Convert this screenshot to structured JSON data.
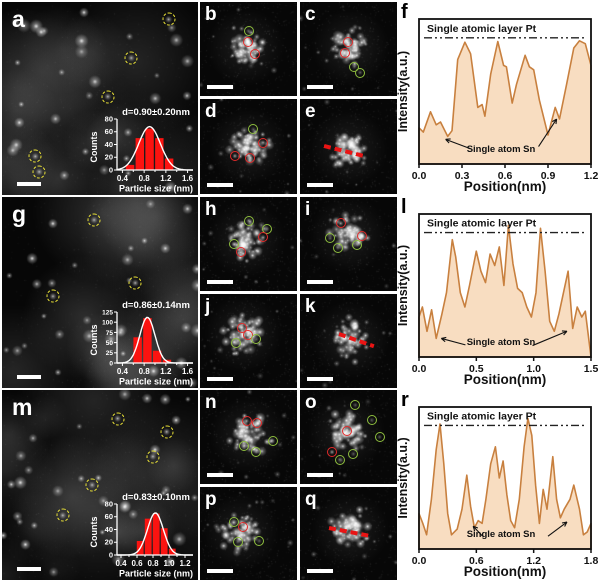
{
  "profile_labels": {
    "top_annotation": "Single atomic layer Pt",
    "bottom_annotation": "Single atom Sn",
    "xlabel": "Position(nm)",
    "ylabel": "Intensity(a.u.)"
  },
  "hist_labels": {
    "xlabel": "Particle size (nm)",
    "ylabel": "Counts"
  },
  "colors": {
    "profile_line": "#c8803f",
    "profile_fill": "#f8ddc1",
    "bar_red": "#fb1310",
    "gauss_curve": "#ffffff",
    "marker_red": "#e32a2a",
    "marker_green": "#8fbf3f",
    "marker_yellow": "#f0e838",
    "dashed_line_red": "#ea1414",
    "annotation": "#111111"
  },
  "micrographs": [
    {
      "id": "a",
      "label": "a",
      "kind": "support",
      "scale_bar": true,
      "hist": "a",
      "markers": [
        {
          "type": "yellow",
          "x": 85,
          "y": 9
        },
        {
          "type": "yellow",
          "x": 66,
          "y": 29
        },
        {
          "type": "yellow",
          "x": 54,
          "y": 49
        },
        {
          "type": "yellow",
          "x": 17,
          "y": 80
        },
        {
          "type": "yellow",
          "x": 19,
          "y": 88
        }
      ]
    },
    {
      "id": "b",
      "label": "b",
      "kind": "cluster",
      "scale_bar": true,
      "cluster": [
        47,
        48
      ],
      "markers": [
        {
          "type": "green",
          "x": 50,
          "y": 31
        },
        {
          "type": "red",
          "x": 49,
          "y": 43
        },
        {
          "type": "red",
          "x": 57,
          "y": 55
        }
      ]
    },
    {
      "id": "c",
      "label": "c",
      "kind": "cluster",
      "scale_bar": true,
      "cluster": [
        52,
        48
      ],
      "markers": [
        {
          "type": "red",
          "x": 49,
          "y": 43
        },
        {
          "type": "red",
          "x": 46,
          "y": 54
        },
        {
          "type": "green",
          "x": 56,
          "y": 69
        },
        {
          "type": "green",
          "x": 62,
          "y": 75
        }
      ]
    },
    {
      "id": "d",
      "label": "d",
      "kind": "cluster",
      "scale_bar": true,
      "cluster": [
        50,
        50
      ],
      "markers": [
        {
          "type": "green",
          "x": 55,
          "y": 32
        },
        {
          "type": "red",
          "x": 65,
          "y": 46
        },
        {
          "type": "red",
          "x": 36,
          "y": 60
        },
        {
          "type": "red",
          "x": 52,
          "y": 62
        }
      ]
    },
    {
      "id": "e",
      "label": "e",
      "kind": "cluster",
      "scale_bar": true,
      "cluster": [
        50,
        52
      ],
      "line": {
        "x1": 25,
        "y1": 47,
        "x2": 68,
        "y2": 58
      }
    },
    {
      "id": "g",
      "label": "g",
      "kind": "support",
      "scale_bar": true,
      "hist": "g",
      "markers": [
        {
          "type": "yellow",
          "x": 47,
          "y": 12
        },
        {
          "type": "yellow",
          "x": 68,
          "y": 45
        },
        {
          "type": "yellow",
          "x": 26,
          "y": 52
        }
      ]
    },
    {
      "id": "h",
      "label": "h",
      "kind": "cluster",
      "scale_bar": true,
      "cluster": [
        48,
        45
      ],
      "markers": [
        {
          "type": "green",
          "x": 50,
          "y": 25
        },
        {
          "type": "green",
          "x": 69,
          "y": 34
        },
        {
          "type": "red",
          "x": 65,
          "y": 43
        },
        {
          "type": "green",
          "x": 35,
          "y": 50
        },
        {
          "type": "red",
          "x": 42,
          "y": 59
        }
      ]
    },
    {
      "id": "i",
      "label": "i",
      "kind": "cluster",
      "scale_bar": true,
      "cluster": [
        50,
        40
      ],
      "markers": [
        {
          "type": "red",
          "x": 42,
          "y": 28
        },
        {
          "type": "red",
          "x": 64,
          "y": 41
        },
        {
          "type": "green",
          "x": 31,
          "y": 44
        },
        {
          "type": "green",
          "x": 39,
          "y": 54
        },
        {
          "type": "green",
          "x": 59,
          "y": 51
        }
      ]
    },
    {
      "id": "j",
      "label": "j",
      "kind": "cluster",
      "scale_bar": true,
      "cluster": [
        45,
        42
      ],
      "markers": [
        {
          "type": "red",
          "x": 43,
          "y": 36
        },
        {
          "type": "red",
          "x": 49,
          "y": 44
        },
        {
          "type": "green",
          "x": 58,
          "y": 48
        },
        {
          "type": "green",
          "x": 37,
          "y": 52
        }
      ]
    },
    {
      "id": "k",
      "label": "k",
      "kind": "cluster",
      "scale_bar": true,
      "cluster": [
        52,
        48
      ],
      "line": {
        "x1": 40,
        "y1": 40,
        "x2": 76,
        "y2": 53
      }
    },
    {
      "id": "m",
      "label": "m",
      "kind": "support",
      "scale_bar": true,
      "hist": "m",
      "markers": [
        {
          "type": "yellow",
          "x": 59,
          "y": 15
        },
        {
          "type": "yellow",
          "x": 84,
          "y": 22
        },
        {
          "type": "yellow",
          "x": 77,
          "y": 35
        },
        {
          "type": "yellow",
          "x": 46,
          "y": 50
        },
        {
          "type": "yellow",
          "x": 31,
          "y": 66
        }
      ]
    },
    {
      "id": "n",
      "label": "n",
      "kind": "cluster",
      "scale_bar": true,
      "cluster": [
        50,
        48
      ],
      "markers": [
        {
          "type": "red",
          "x": 48,
          "y": 33
        },
        {
          "type": "red",
          "x": 59,
          "y": 35
        },
        {
          "type": "green",
          "x": 75,
          "y": 54
        },
        {
          "type": "green",
          "x": 45,
          "y": 60
        },
        {
          "type": "green",
          "x": 58,
          "y": 66
        }
      ]
    },
    {
      "id": "o",
      "label": "o",
      "kind": "cluster",
      "scale_bar": true,
      "cluster": [
        48,
        45
      ],
      "markers": [
        {
          "type": "green",
          "x": 57,
          "y": 16
        },
        {
          "type": "green",
          "x": 74,
          "y": 32
        },
        {
          "type": "red",
          "x": 48,
          "y": 44
        },
        {
          "type": "green",
          "x": 82,
          "y": 50
        },
        {
          "type": "red",
          "x": 33,
          "y": 66
        },
        {
          "type": "green",
          "x": 55,
          "y": 68
        },
        {
          "type": "green",
          "x": 41,
          "y": 74
        }
      ]
    },
    {
      "id": "p",
      "label": "p",
      "kind": "cluster",
      "scale_bar": true,
      "cluster": [
        42,
        48
      ],
      "markers": [
        {
          "type": "green",
          "x": 35,
          "y": 38
        },
        {
          "type": "red",
          "x": 44,
          "y": 43
        },
        {
          "type": "green",
          "x": 39,
          "y": 59
        },
        {
          "type": "green",
          "x": 61,
          "y": 58
        }
      ]
    },
    {
      "id": "q",
      "label": "q",
      "kind": "cluster",
      "scale_bar": true,
      "cluster": [
        52,
        46
      ],
      "line": {
        "x1": 30,
        "y1": 42,
        "x2": 70,
        "y2": 50
      }
    }
  ],
  "chart_data": [
    {
      "id": "hist-a",
      "panel": "a",
      "type": "bar",
      "title": "d=0.90±0.20nm",
      "xlabel": "Particle size (nm)",
      "ylabel": "Counts",
      "xlim": [
        0.3,
        1.7
      ],
      "ylim": [
        0,
        80
      ],
      "xticks": [
        0.4,
        0.8,
        1.2,
        1.6
      ],
      "yticks": [
        0,
        20,
        40,
        60,
        80
      ],
      "bar_centers": [
        0.54,
        0.72,
        0.9,
        1.08,
        1.26
      ],
      "bar_heights": [
        8,
        50,
        65,
        50,
        18
      ],
      "bar_width": 0.17,
      "gauss": {
        "mean": 0.9,
        "sd": 0.2,
        "amp": 68
      }
    },
    {
      "id": "hist-g",
      "panel": "g",
      "type": "bar",
      "title": "d=0.86±0.14nm",
      "xlabel": "Particle size (nm)",
      "ylabel": "Counts",
      "xlim": [
        0.3,
        1.7
      ],
      "ylim": [
        0,
        125
      ],
      "xticks": [
        0.4,
        0.8,
        1.2,
        1.6
      ],
      "yticks": [
        0,
        25,
        50,
        75,
        100,
        125
      ],
      "bar_centers": [
        0.68,
        0.86,
        1.04,
        1.22
      ],
      "bar_heights": [
        63,
        110,
        30,
        8
      ],
      "bar_width": 0.17,
      "gauss": {
        "mean": 0.86,
        "sd": 0.14,
        "amp": 112
      }
    },
    {
      "id": "hist-m",
      "panel": "m",
      "type": "bar",
      "title": "d=0.83±0.10nm",
      "xlabel": "Particle size (nm)",
      "ylabel": "Counts",
      "xlim": [
        0.35,
        1.3
      ],
      "ylim": [
        0,
        80
      ],
      "xticks": [
        0.4,
        0.6,
        0.8,
        1.0,
        1.2
      ],
      "yticks": [
        0,
        20,
        40,
        60,
        80
      ],
      "bar_centers": [
        0.64,
        0.74,
        0.84,
        0.94,
        1.04
      ],
      "bar_heights": [
        22,
        57,
        65,
        42,
        10
      ],
      "bar_width": 0.095,
      "gauss": {
        "mean": 0.83,
        "sd": 0.1,
        "amp": 66
      }
    },
    {
      "id": "profile-f",
      "panel": "f",
      "type": "line",
      "title": "",
      "xlabel": "Position(nm)",
      "ylabel": "Intensity(a.u.)",
      "xlim": [
        0,
        1.2
      ],
      "xticks": [
        0.0,
        0.3,
        0.6,
        0.9,
        1.2
      ],
      "dashline_frac": 0.87,
      "annotation_top": "Single atomic layer Pt",
      "annotation_bottom": "Single atom Sn",
      "arrows": [
        {
          "from": [
            0.3,
            0.105
          ],
          "to": [
            0.155,
            0.17
          ]
        },
        {
          "from": [
            0.695,
            0.12
          ],
          "to": [
            0.8,
            0.31
          ]
        }
      ],
      "points": [
        [
          0,
          0.25
        ],
        [
          0.03,
          0.22
        ],
        [
          0.08,
          0.36
        ],
        [
          0.12,
          0.27
        ],
        [
          0.15,
          0.29
        ],
        [
          0.2,
          0.19
        ],
        [
          0.23,
          0.23
        ],
        [
          0.27,
          0.72
        ],
        [
          0.32,
          0.84
        ],
        [
          0.36,
          0.76
        ],
        [
          0.41,
          0.39
        ],
        [
          0.44,
          0.41
        ],
        [
          0.46,
          0.33
        ],
        [
          0.5,
          0.62
        ],
        [
          0.55,
          0.845
        ],
        [
          0.59,
          0.68
        ],
        [
          0.61,
          0.67
        ],
        [
          0.65,
          0.42
        ],
        [
          0.68,
          0.55
        ],
        [
          0.74,
          0.75
        ],
        [
          0.77,
          0.67
        ],
        [
          0.8,
          0.65
        ],
        [
          0.84,
          0.44
        ],
        [
          0.9,
          0.2
        ],
        [
          0.95,
          0.39
        ],
        [
          0.98,
          0.31
        ],
        [
          1.03,
          0.55
        ],
        [
          1.08,
          0.8
        ],
        [
          1.12,
          0.85
        ],
        [
          1.16,
          0.83
        ],
        [
          1.2,
          0.68
        ]
      ]
    },
    {
      "id": "profile-l",
      "panel": "l",
      "type": "line",
      "title": "",
      "xlabel": "Position(nm)",
      "ylabel": "Intensity(a.u.)",
      "xlim": [
        0,
        1.5
      ],
      "xticks": [
        0.0,
        0.5,
        1.0,
        1.5
      ],
      "dashline_frac": 0.87,
      "annotation_top": "Single atomic layer Pt",
      "annotation_bottom": "Single atom Sn",
      "arrows": [
        {
          "from": [
            0.27,
            0.085
          ],
          "to": [
            0.13,
            0.13
          ]
        },
        {
          "from": [
            0.66,
            0.08
          ],
          "to": [
            0.86,
            0.18
          ]
        }
      ],
      "points": [
        [
          0,
          0.28
        ],
        [
          0.03,
          0.35
        ],
        [
          0.07,
          0.18
        ],
        [
          0.11,
          0.33
        ],
        [
          0.15,
          0.13
        ],
        [
          0.2,
          0.3
        ],
        [
          0.24,
          0.45
        ],
        [
          0.29,
          0.82
        ],
        [
          0.32,
          0.7
        ],
        [
          0.36,
          0.45
        ],
        [
          0.4,
          0.35
        ],
        [
          0.44,
          0.5
        ],
        [
          0.5,
          0.74
        ],
        [
          0.54,
          0.6
        ],
        [
          0.58,
          0.52
        ],
        [
          0.62,
          0.72
        ],
        [
          0.66,
          0.64
        ],
        [
          0.7,
          0.77
        ],
        [
          0.74,
          0.5
        ],
        [
          0.78,
          0.92
        ],
        [
          0.82,
          0.65
        ],
        [
          0.86,
          0.48
        ],
        [
          0.9,
          0.45
        ],
        [
          0.94,
          0.35
        ],
        [
          0.98,
          0.28
        ],
        [
          1.02,
          0.45
        ],
        [
          1.06,
          0.9
        ],
        [
          1.1,
          0.6
        ],
        [
          1.14,
          0.25
        ],
        [
          1.18,
          0.18
        ],
        [
          1.22,
          0.3
        ],
        [
          1.26,
          0.45
        ],
        [
          1.3,
          0.6
        ],
        [
          1.34,
          0.2
        ],
        [
          1.38,
          0.35
        ],
        [
          1.42,
          0.28
        ],
        [
          1.45,
          0.32
        ]
      ]
    },
    {
      "id": "profile-r",
      "panel": "r",
      "type": "line",
      "title": "",
      "xlabel": "Position(nm)",
      "ylabel": "Intensity(a.u.)",
      "xlim": [
        0,
        1.8
      ],
      "xticks": [
        0.0,
        0.6,
        1.2,
        1.8
      ],
      "dashline_frac": 0.87,
      "annotation_top": "Single atomic layer Pt",
      "annotation_bottom": "Single atom Sn",
      "arrows": [
        {
          "from": [
            0.37,
            0.09
          ],
          "to": [
            0.315,
            0.16
          ]
        },
        {
          "from": [
            0.75,
            0.09
          ],
          "to": [
            0.86,
            0.19
          ]
        }
      ],
      "points": [
        [
          0,
          0.25
        ],
        [
          0.04,
          0.18
        ],
        [
          0.08,
          0.1
        ],
        [
          0.13,
          0.35
        ],
        [
          0.18,
          0.7
        ],
        [
          0.22,
          0.88
        ],
        [
          0.26,
          0.6
        ],
        [
          0.3,
          0.25
        ],
        [
          0.34,
          0.1
        ],
        [
          0.4,
          0.14
        ],
        [
          0.45,
          0.28
        ],
        [
          0.5,
          0.52
        ],
        [
          0.54,
          0.3
        ],
        [
          0.58,
          0.15
        ],
        [
          0.62,
          0.2
        ],
        [
          0.66,
          0.18
        ],
        [
          0.7,
          0.35
        ],
        [
          0.75,
          0.6
        ],
        [
          0.8,
          0.72
        ],
        [
          0.84,
          0.5
        ],
        [
          0.88,
          0.62
        ],
        [
          0.92,
          0.38
        ],
        [
          0.96,
          0.2
        ],
        [
          1,
          0.15
        ],
        [
          1.05,
          0.35
        ],
        [
          1.1,
          0.72
        ],
        [
          1.14,
          0.92
        ],
        [
          1.18,
          0.8
        ],
        [
          1.22,
          0.45
        ],
        [
          1.26,
          0.18
        ],
        [
          1.3,
          0.42
        ],
        [
          1.34,
          0.28
        ],
        [
          1.4,
          0.65
        ],
        [
          1.44,
          0.35
        ],
        [
          1.48,
          0.22
        ],
        [
          1.52,
          0.28
        ],
        [
          1.58,
          0.35
        ],
        [
          1.62,
          0.45
        ],
        [
          1.68,
          0.28
        ],
        [
          1.72,
          0.1
        ],
        [
          1.76,
          0.12
        ],
        [
          1.8,
          0.18
        ]
      ]
    }
  ]
}
